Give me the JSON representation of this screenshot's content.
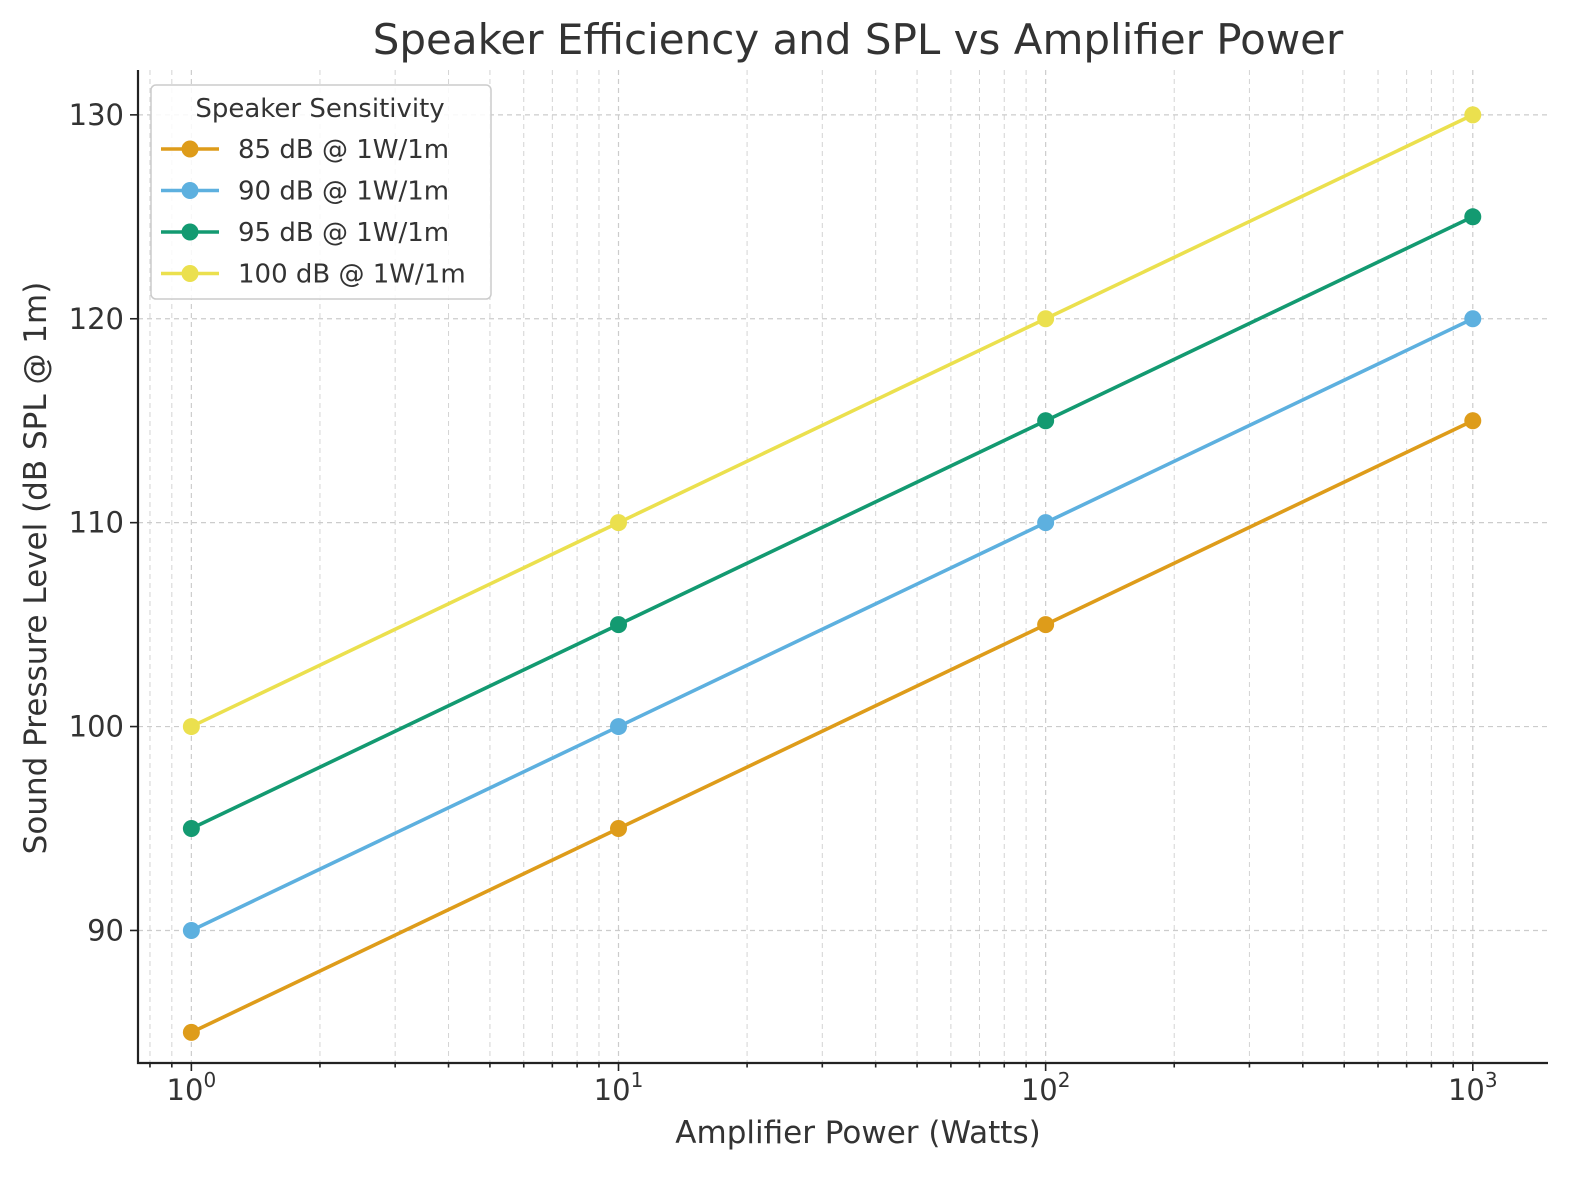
{
  "chart_data": {
    "type": "line",
    "title": "Speaker Efficiency and SPL vs Amplifier Power",
    "xlabel": "Amplifier Power (Watts)",
    "ylabel": "Sound Pressure Level (dB SPL @ 1m)",
    "xscale": "log",
    "xlim": [
      0.75,
      1500
    ],
    "ylim": [
      83.5,
      132.2
    ],
    "x": [
      1,
      10,
      100,
      1000
    ],
    "x_ticks": [
      {
        "base": "10",
        "exp": "0",
        "value": 1
      },
      {
        "base": "10",
        "exp": "1",
        "value": 10
      },
      {
        "base": "10",
        "exp": "2",
        "value": 100
      },
      {
        "base": "10",
        "exp": "3",
        "value": 1000
      }
    ],
    "y_ticks": [
      {
        "label": "90",
        "value": 90
      },
      {
        "label": "100",
        "value": 100
      },
      {
        "label": "110",
        "value": 110
      },
      {
        "label": "120",
        "value": 120
      },
      {
        "label": "130",
        "value": 130
      }
    ],
    "grid": true,
    "legend": {
      "title": "Speaker Sensitivity",
      "position": "top-left"
    },
    "series": [
      {
        "name": "85 dB @ 1W/1m",
        "color": "#DE9C1A",
        "values": [
          85,
          95,
          105,
          115
        ]
      },
      {
        "name": "90 dB @ 1W/1m",
        "color": "#5DB0DF",
        "values": [
          90,
          100,
          110,
          120
        ]
      },
      {
        "name": "95 dB @ 1W/1m",
        "color": "#139A71",
        "values": [
          95,
          105,
          115,
          125
        ]
      },
      {
        "name": "100 dB @ 1W/1m",
        "color": "#EBE04E",
        "values": [
          100,
          110,
          120,
          130
        ]
      }
    ]
  }
}
